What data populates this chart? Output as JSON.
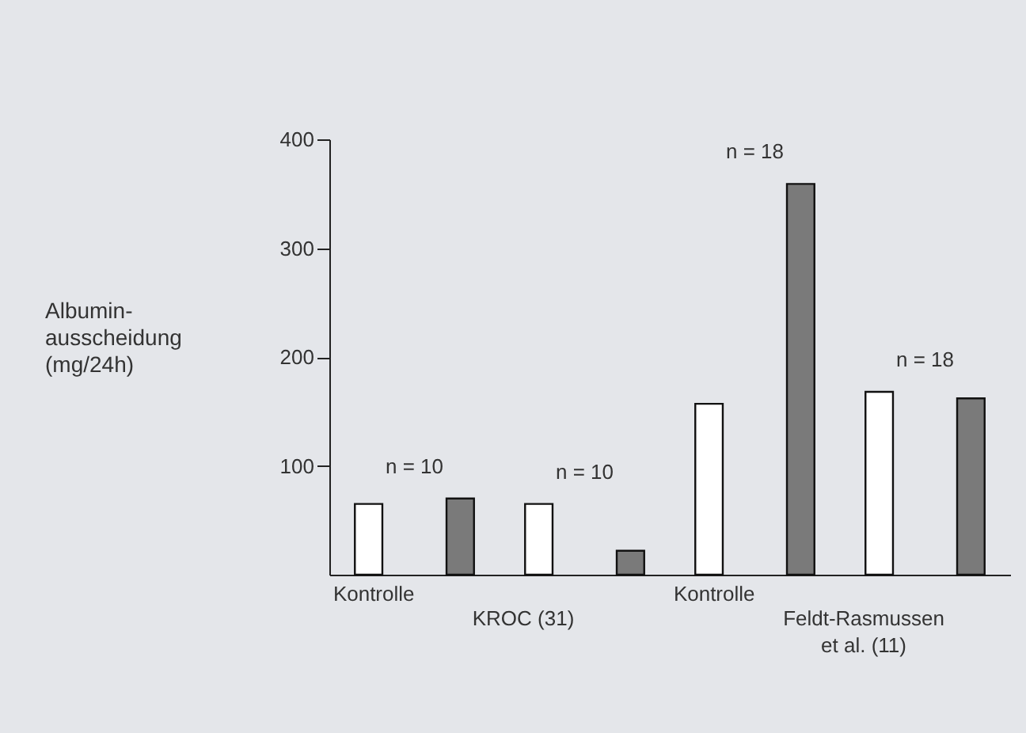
{
  "chart_data": {
    "type": "bar",
    "ylabel": "Albumin-\nausscheidung\n(mg/24h)",
    "categories": [
      "Kontrolle",
      null,
      "Kontrolle",
      null
    ],
    "series": [
      {
        "color": "#ffffff",
        "values": [
          65,
          65,
          157,
          168
        ]
      },
      {
        "color": "#7a7a7a",
        "values": [
          70,
          22,
          359,
          162
        ]
      }
    ],
    "ylim": [
      0,
      400
    ],
    "yticks": [
      100,
      200,
      300,
      400
    ],
    "annotations": [
      "n = 10",
      "n = 10",
      "n = 18",
      "n = 18",
      "KROC (31)",
      "Feldt-Rasmussen\net al. (11)"
    ]
  }
}
